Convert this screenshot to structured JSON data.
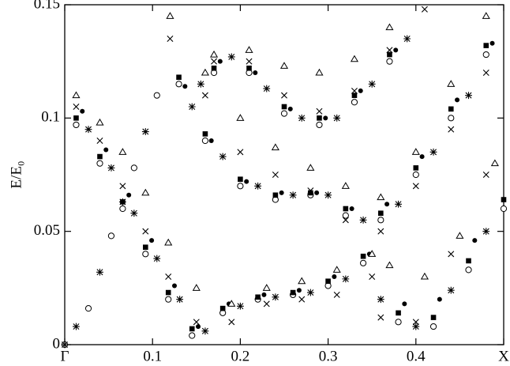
{
  "chart_data": {
    "type": "scatter",
    "y_label": "E/E₀",
    "xlim": [
      0,
      0.5
    ],
    "ylim": [
      0,
      0.15
    ],
    "xticks": [
      {
        "value": 0,
        "label": "Γ"
      },
      0.1,
      0.2,
      0.3,
      0.4,
      {
        "value": 0.5,
        "label": "X"
      }
    ],
    "yticks": [
      0,
      0.05,
      0.1,
      0.15
    ],
    "grid": false,
    "series": [
      {
        "color": "#000000",
        "marker": "circle-open",
        "x": [
          0,
          0.027,
          0.053,
          0.079,
          0.105,
          0.013,
          0.04,
          0.066,
          0.092,
          0.118,
          0.145,
          0.18,
          0.22,
          0.26,
          0.3,
          0.34,
          0.13,
          0.16,
          0.2,
          0.24,
          0.28,
          0.32,
          0.36,
          0.4,
          0.44,
          0.48,
          0.17,
          0.21,
          0.25,
          0.29,
          0.33,
          0.37,
          0.38,
          0.42,
          0.46,
          0.5
        ],
        "values": [
          0,
          0.016,
          0.048,
          0.078,
          0.11,
          0.097,
          0.08,
          0.06,
          0.04,
          0.02,
          0.004,
          0.014,
          0.02,
          0.022,
          0.026,
          0.036,
          0.115,
          0.09,
          0.07,
          0.064,
          0.066,
          0.057,
          0.055,
          0.075,
          0.1,
          0.128,
          0.12,
          0.12,
          0.102,
          0.097,
          0.107,
          0.125,
          0.01,
          0.008,
          0.033,
          0.06
        ]
      },
      {
        "color": "#000000",
        "marker": "square-filled",
        "x": [
          0.013,
          0.04,
          0.066,
          0.092,
          0.118,
          0.145,
          0.18,
          0.22,
          0.26,
          0.3,
          0.34,
          0.13,
          0.16,
          0.2,
          0.24,
          0.28,
          0.32,
          0.36,
          0.4,
          0.44,
          0.48,
          0.17,
          0.21,
          0.25,
          0.29,
          0.33,
          0.37,
          0.38,
          0.42,
          0.46,
          0.5
        ],
        "values": [
          0.1,
          0.083,
          0.063,
          0.043,
          0.023,
          0.007,
          0.016,
          0.021,
          0.023,
          0.028,
          0.039,
          0.118,
          0.093,
          0.073,
          0.066,
          0.067,
          0.06,
          0.058,
          0.078,
          0.104,
          0.132,
          0.122,
          0.122,
          0.105,
          0.1,
          0.11,
          0.128,
          0.014,
          0.012,
          0.037,
          0.064
        ]
      },
      {
        "color": "#000000",
        "marker": "circle-filled",
        "x": [
          0.02,
          0.047,
          0.073,
          0.099,
          0.125,
          0.152,
          0.187,
          0.227,
          0.267,
          0.307,
          0.347,
          0.137,
          0.167,
          0.207,
          0.247,
          0.287,
          0.327,
          0.367,
          0.407,
          0.447,
          0.487,
          0.177,
          0.217,
          0.257,
          0.297,
          0.337,
          0.377,
          0.387,
          0.427,
          0.467
        ],
        "values": [
          0.103,
          0.086,
          0.066,
          0.046,
          0.026,
          0.008,
          0.018,
          0.022,
          0.024,
          0.03,
          0.04,
          0.114,
          0.09,
          0.072,
          0.067,
          0.067,
          0.06,
          0.062,
          0.083,
          0.108,
          0.133,
          0.125,
          0.12,
          0.104,
          0.1,
          0.112,
          0.13,
          0.018,
          0.02,
          0.046
        ]
      },
      {
        "color": "#000000",
        "marker": "asterisk",
        "x": [
          0,
          0.013,
          0.04,
          0.066,
          0.092,
          0.027,
          0.053,
          0.079,
          0.105,
          0.131,
          0.16,
          0.2,
          0.24,
          0.28,
          0.32,
          0.145,
          0.18,
          0.22,
          0.26,
          0.3,
          0.34,
          0.38,
          0.42,
          0.46,
          0.155,
          0.19,
          0.23,
          0.27,
          0.31,
          0.35,
          0.39,
          0.36,
          0.4,
          0.44,
          0.48
        ],
        "values": [
          0,
          0.008,
          0.032,
          0.063,
          0.094,
          0.095,
          0.078,
          0.058,
          0.038,
          0.02,
          0.006,
          0.017,
          0.021,
          0.023,
          0.029,
          0.105,
          0.083,
          0.07,
          0.066,
          0.066,
          0.055,
          0.062,
          0.085,
          0.11,
          0.115,
          0.127,
          0.113,
          0.1,
          0.1,
          0.115,
          0.135,
          0.02,
          0.008,
          0.024,
          0.05
        ]
      },
      {
        "color": "#000000",
        "marker": "cross",
        "x": [
          0.013,
          0.04,
          0.066,
          0.092,
          0.118,
          0.15,
          0.19,
          0.23,
          0.27,
          0.31,
          0.35,
          0.12,
          0.16,
          0.2,
          0.24,
          0.28,
          0.32,
          0.36,
          0.4,
          0.44,
          0.48,
          0.17,
          0.21,
          0.25,
          0.29,
          0.33,
          0.37,
          0.41,
          0.36,
          0.4,
          0.44,
          0.48
        ],
        "values": [
          0.105,
          0.09,
          0.07,
          0.05,
          0.03,
          0.01,
          0.01,
          0.018,
          0.02,
          0.022,
          0.03,
          0.135,
          0.11,
          0.085,
          0.075,
          0.068,
          0.055,
          0.05,
          0.07,
          0.095,
          0.12,
          0.125,
          0.125,
          0.11,
          0.103,
          0.112,
          0.13,
          0.148,
          0.012,
          0.01,
          0.04,
          0.075
        ]
      },
      {
        "color": "#000000",
        "marker": "triangle-open",
        "x": [
          0.013,
          0.04,
          0.066,
          0.092,
          0.118,
          0.15,
          0.19,
          0.23,
          0.27,
          0.31,
          0.35,
          0.12,
          0.16,
          0.2,
          0.24,
          0.28,
          0.32,
          0.36,
          0.4,
          0.44,
          0.48,
          0.17,
          0.21,
          0.25,
          0.29,
          0.33,
          0.37,
          0.37,
          0.41,
          0.45,
          0.49
        ],
        "values": [
          0.11,
          0.098,
          0.085,
          0.067,
          0.045,
          0.025,
          0.018,
          0.025,
          0.028,
          0.033,
          0.04,
          0.145,
          0.12,
          0.1,
          0.087,
          0.078,
          0.07,
          0.065,
          0.085,
          0.115,
          0.145,
          0.128,
          0.13,
          0.123,
          0.12,
          0.126,
          0.14,
          0.035,
          0.03,
          0.048,
          0.08
        ]
      }
    ]
  }
}
